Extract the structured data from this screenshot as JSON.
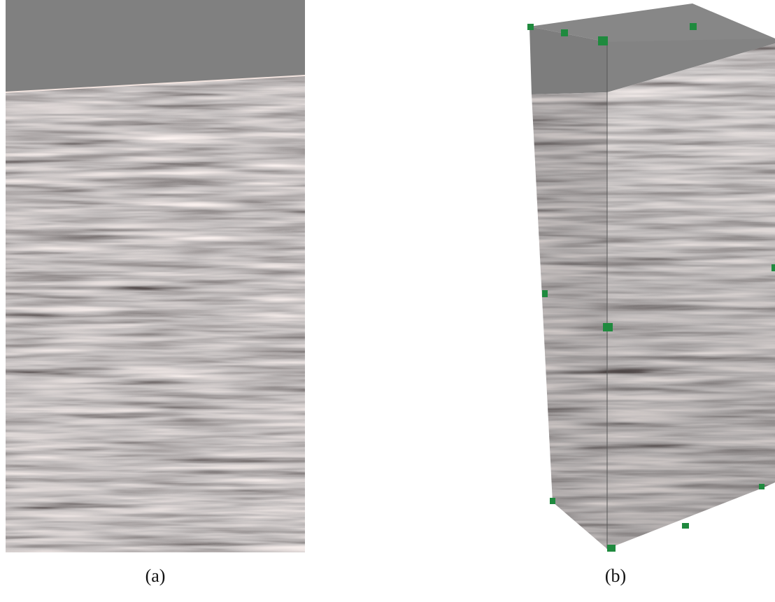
{
  "figure": {
    "captions": [
      "(a)",
      "(b)"
    ]
  }
}
